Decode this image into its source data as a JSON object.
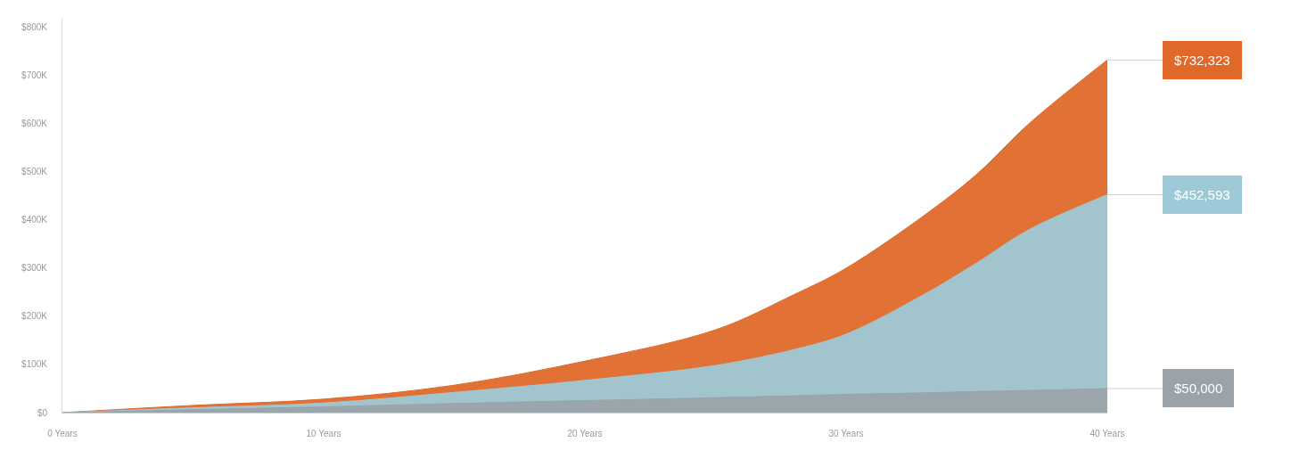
{
  "chart_data": {
    "type": "area",
    "x": [
      0,
      5,
      10,
      15,
      20,
      25,
      28,
      30,
      33,
      35,
      37,
      40
    ],
    "series": [
      {
        "color": "#e0692a",
        "values": [
          0,
          15000,
          28000,
          57000,
          107000,
          172000,
          245000,
          300000,
          410000,
          495000,
          600000,
          732323
        ],
        "value_labels": [
          null,
          null,
          null,
          null,
          null,
          null,
          null,
          null,
          null,
          null,
          null,
          "$732,323"
        ]
      },
      {
        "color": "#9ec9d6",
        "values": [
          0,
          10000,
          20000,
          42000,
          67000,
          98000,
          131000,
          163000,
          246000,
          311000,
          380000,
          452593
        ],
        "value_labels": [
          null,
          null,
          null,
          null,
          null,
          null,
          null,
          null,
          null,
          null,
          null,
          "$452,593"
        ]
      },
      {
        "color": "#9aa3aa",
        "values": [
          0,
          6000,
          12000,
          19000,
          25000,
          31000,
          35000,
          38000,
          41000,
          44000,
          46000,
          50000
        ],
        "value_labels": [
          null,
          null,
          null,
          null,
          null,
          null,
          null,
          null,
          null,
          null,
          null,
          "$50,000"
        ]
      }
    ],
    "xlim": [
      0,
      40
    ],
    "xticks": [
      {
        "value": 0,
        "label": "0 Years"
      },
      {
        "value": 10,
        "label": "10 Years"
      },
      {
        "value": 20,
        "label": "20 Years"
      },
      {
        "value": 30,
        "label": "30 Years"
      },
      {
        "value": 40,
        "label": "40 Years"
      }
    ],
    "ylim": [
      0,
      820000
    ],
    "yticks": [
      {
        "value": 0,
        "label": "$0"
      },
      {
        "value": 100000,
        "label": "$100K"
      },
      {
        "value": 200000,
        "label": "$200K"
      },
      {
        "value": 300000,
        "label": "$300K"
      },
      {
        "value": 400000,
        "label": "$400K"
      },
      {
        "value": 500000,
        "label": "$500K"
      },
      {
        "value": 600000,
        "label": "$600K"
      },
      {
        "value": 700000,
        "label": "$700K"
      },
      {
        "value": 800000,
        "label": "$800K"
      }
    ],
    "relative": false
  }
}
